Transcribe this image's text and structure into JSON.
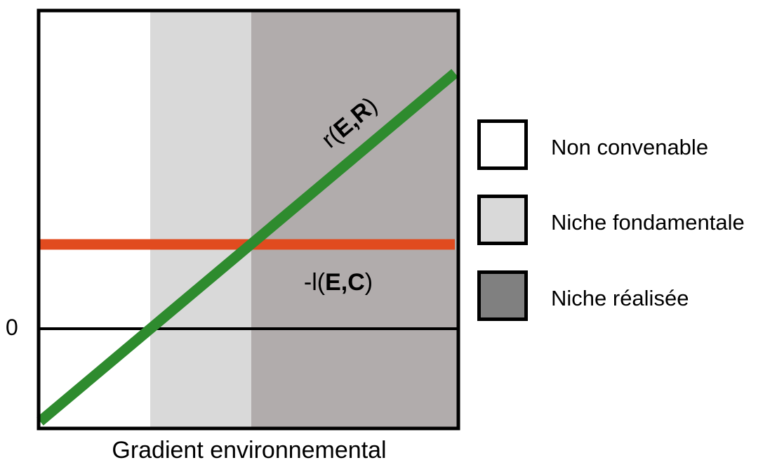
{
  "colors": {
    "non_convenable": "#ffffff",
    "niche_fondamentale": "#d9d9d9",
    "niche_realisee_zone": "#b1acac",
    "niche_realisee_swatch": "#808080",
    "growth_line": "#2e8b2e",
    "loss_line": "#e14b1f",
    "axis": "#000000"
  },
  "diagram": {
    "x_axis_label": "Gradient environnemental",
    "zero_label": "0",
    "growth_curve": {
      "name_plain": "r(",
      "name_bold": "E,R",
      "name_close": ")"
    },
    "loss_curve": {
      "name_plain": "-l(",
      "name_bold": "E,C",
      "name_close": ")"
    }
  },
  "legend": {
    "items": [
      {
        "label": "Non convenable",
        "swatch": "non_convenable"
      },
      {
        "label": "Niche fondamentale",
        "swatch": "niche_fondamentale"
      },
      {
        "label": "Niche réalisée",
        "swatch": "niche_realisee_swatch"
      }
    ]
  }
}
